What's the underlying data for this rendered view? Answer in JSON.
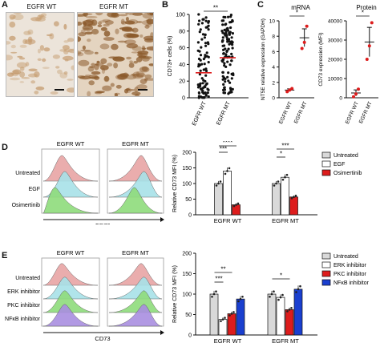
{
  "panel_letters": {
    "a": "A",
    "b": "B",
    "c": "C",
    "d": "D",
    "e": "E"
  },
  "colors": {
    "wt_brown": "#c49a6c",
    "mt_brown": "#8b5a2b",
    "red": "#dd1c1c",
    "gray": "#d9d9d9",
    "white": "#ffffff",
    "blue": "#1a3fcf",
    "hist_red": "#e8a5a5",
    "hist_cyan": "#a8e2e8",
    "hist_green": "#8fdc7c",
    "hist_purple": "#a98fe0"
  },
  "panel_a": {
    "titles": [
      "EGFR WT",
      "EGFR MT"
    ]
  },
  "chart_data": [
    {
      "id": "B",
      "type": "scatter",
      "ylabel": "CD73+ cells (%)",
      "ylim": [
        0,
        100
      ],
      "yticks": [
        "0",
        "20",
        "40",
        "60",
        "80",
        "100"
      ],
      "categories": [
        "EGFR WT",
        "EGFR MT"
      ],
      "medians": [
        30,
        48
      ],
      "significance": "**"
    },
    {
      "id": "C-mRNA",
      "type": "bar",
      "title": "mRNA",
      "ylabel": "NT5E relative expression (GAPDH)",
      "ylim": [
        0,
        10
      ],
      "yticks": [
        "0",
        "2",
        "4",
        "6",
        "8",
        "10"
      ],
      "categories": [
        "EGFR WT",
        "EGFR MT"
      ],
      "values": [
        1.0,
        7.8
      ],
      "points": [
        [
          0.8,
          1.0,
          1.2
        ],
        [
          6.4,
          7.2,
          9.3
        ]
      ],
      "significance": "*"
    },
    {
      "id": "C-Protein",
      "type": "bar",
      "title": "Protein",
      "ylabel": "CD73 expression (MFI)",
      "ylim": [
        0,
        40000
      ],
      "yticks": [
        "0",
        "10000",
        "20000",
        "30000",
        "40000"
      ],
      "categories": [
        "EGFR WT",
        "EGFR MT"
      ],
      "values": [
        2500,
        29000
      ],
      "points": [
        [
          500,
          2000,
          4500
        ],
        [
          20000,
          27000,
          39000
        ]
      ],
      "significance": "*"
    },
    {
      "id": "D",
      "type": "bar",
      "ylabel": "Relative CD73 MFI (%)",
      "ylim": [
        0,
        200
      ],
      "yticks": [
        "0",
        "50",
        "100",
        "150",
        "200"
      ],
      "categories": [
        "EGFR WT",
        "EGFR MT"
      ],
      "series": [
        {
          "name": "Untreated",
          "values": [
            100,
            100
          ]
        },
        {
          "name": "EGF",
          "values": [
            140,
            120
          ]
        },
        {
          "name": "Osimertinib",
          "values": [
            32,
            57
          ]
        }
      ],
      "significance": [
        "***",
        "****",
        "*",
        "***"
      ]
    },
    {
      "id": "E",
      "type": "bar",
      "ylabel": "Relative CD73 MFI (%)",
      "ylim": [
        0,
        200
      ],
      "yticks": [
        "0",
        "50",
        "100",
        "150",
        "200"
      ],
      "categories": [
        "EGFR WT",
        "EGFR MT"
      ],
      "series": [
        {
          "name": "Untreated",
          "values": [
            100,
            100
          ]
        },
        {
          "name": "ERK inhibitor",
          "values": [
            38,
            92
          ]
        },
        {
          "name": "PKC inhibitor",
          "values": [
            52,
            62
          ]
        },
        {
          "name": "NFκB inhibitor",
          "values": [
            88,
            112
          ]
        }
      ],
      "significance": [
        "**",
        "***",
        "*"
      ]
    }
  ],
  "panel_d_flow": {
    "titles": [
      "EGFR WT",
      "EGFR MT"
    ],
    "rows": [
      "Untreated",
      "EGF",
      "Osimertinib"
    ],
    "xlabel": "CD73"
  },
  "panel_e_flow": {
    "titles": [
      "EGFR WT",
      "EGFR MT"
    ],
    "rows": [
      "Untreated",
      "ERK inhibitor",
      "PKC inhibitor",
      "NFκB inhibitor"
    ],
    "xlabel": "CD73"
  }
}
